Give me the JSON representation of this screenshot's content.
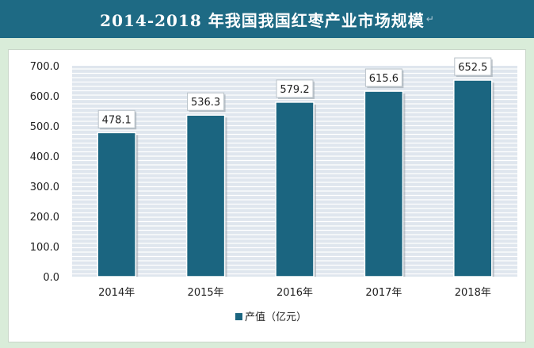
{
  "title": "2014-2018 年我国我国红枣产业市场规模",
  "title_mark": "↵",
  "colors": {
    "title_bar": "#1e6a84",
    "bar": "#1b6580",
    "plot_bg": "#dfe6ee",
    "grid": "#ffffff",
    "page_bg": "#d9ecd9"
  },
  "chart_data": {
    "type": "bar",
    "categories": [
      "2014年",
      "2015年",
      "2016年",
      "2017年",
      "2018年"
    ],
    "series": [
      {
        "name": "产值（亿元）",
        "values": [
          478.1,
          536.3,
          579.2,
          615.6,
          652.5
        ]
      }
    ],
    "data_labels": [
      "478.1",
      "536.3",
      "579.2",
      "615.6",
      "652.5"
    ],
    "yticks": [
      "0.0",
      "100.0",
      "200.0",
      "300.0",
      "400.0",
      "500.0",
      "600.0",
      "700.0"
    ],
    "ylim": [
      0,
      700
    ],
    "grid": true,
    "legend_position": "bottom"
  }
}
